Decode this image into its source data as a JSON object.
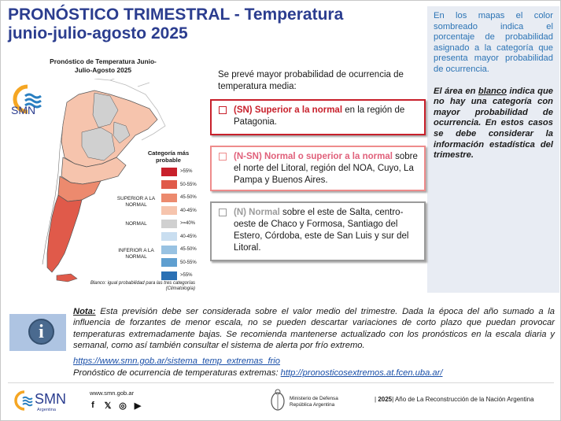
{
  "header": {
    "title_line1": "PRONÓSTICO TRIMESTRAL - Temperatura",
    "title_line2": "junio-julio-agosto 2025"
  },
  "info_box": {
    "p1": "En los mapas el color sombreado indica el porcentaje de probabilidad asignado a la categoría que presenta mayor probabilidad de ocurrencia.",
    "p2_prefix": "El área en ",
    "p2_emph": "blanco",
    "p2_suffix": " indica que no hay una categoría con mayor probabilidad de ocurrencia. En estos casos se debe considerar la información estadística del trimestre."
  },
  "map": {
    "title": "Pronóstico de Temperatura Junio-Julio-Agosto 2025",
    "logo_text": "SMN",
    "legend_title": "Categoría más probable",
    "categories": {
      "above": "SUPERIOR A LA NORMAL",
      "normal": "NORMAL",
      "below": "INFERIOR A LA NORMAL"
    },
    "legend": [
      {
        "label": ">55%",
        "color": "#c8202b"
      },
      {
        "label": "50-55%",
        "color": "#e05a4a"
      },
      {
        "label": "45-50%",
        "color": "#ec8a6e"
      },
      {
        "label": "40-45%",
        "color": "#f6c4ad"
      },
      {
        "label": ">=40%",
        "color": "#d0d0d0"
      },
      {
        "label": "40-45%",
        "color": "#c9def0"
      },
      {
        "label": "45-50%",
        "color": "#98c2e2"
      },
      {
        "label": "50-55%",
        "color": "#5f9fd0"
      },
      {
        "label": ">55%",
        "color": "#2a70b4"
      }
    ],
    "note": "Blanco: igual probabilidad para las tres categorías (Climatología)"
  },
  "forecast": {
    "intro": "Se prevé mayor probabilidad de ocurrencia de temperatura media:",
    "sn_label": "(SN) Superior a la normal",
    "sn_text": " en la región de Patagonia.",
    "nsn_label": "(N-SN) Normal o superior a la normal",
    "nsn_text": " sobre el norte del Litoral, región del NOA, Cuyo, La Pampa y Buenos Aires.",
    "n_label": "(N) Normal",
    "n_text": " sobre el este de Salta, centro-oeste de Chaco y Formosa, Santiago del Estero, Córdoba, este de San Luis y sur del Litoral."
  },
  "note": {
    "label": "Nota:",
    "text": " Esta previsión debe ser considerada sobre el valor medio del trimestre. Dada la época del año sumado a la influencia de forzantes de menor escala, no se pueden descartar variaciones de corto plazo que puedan provocar temperaturas extremadamente bajas. Se recomienda mantenerse actualizado con los pronósticos en la escala diaria y semanal, como así también consultar el sistema de alerta por frío extremo.",
    "link1": "https://www.smn.gob.ar/sistema_temp_extremas_frio",
    "extreme_prefix": "Pronóstico de ocurrencia de temperaturas extremas: ",
    "link2": "http://pronosticosextremos.at.fcen.uba.ar/",
    "icon": "info-icon"
  },
  "footer": {
    "logo_text": "SMN",
    "logo_sub": "Argentina",
    "url": "www.smn.gob.ar",
    "social": [
      "f",
      "𝕏",
      "◎",
      "▶"
    ],
    "ministry_line1": "Ministerio de Defensa",
    "ministry_line2": "República Argentina",
    "year": "2025",
    "motto": " Año de La Reconstrucción de la Nación Argentina"
  }
}
